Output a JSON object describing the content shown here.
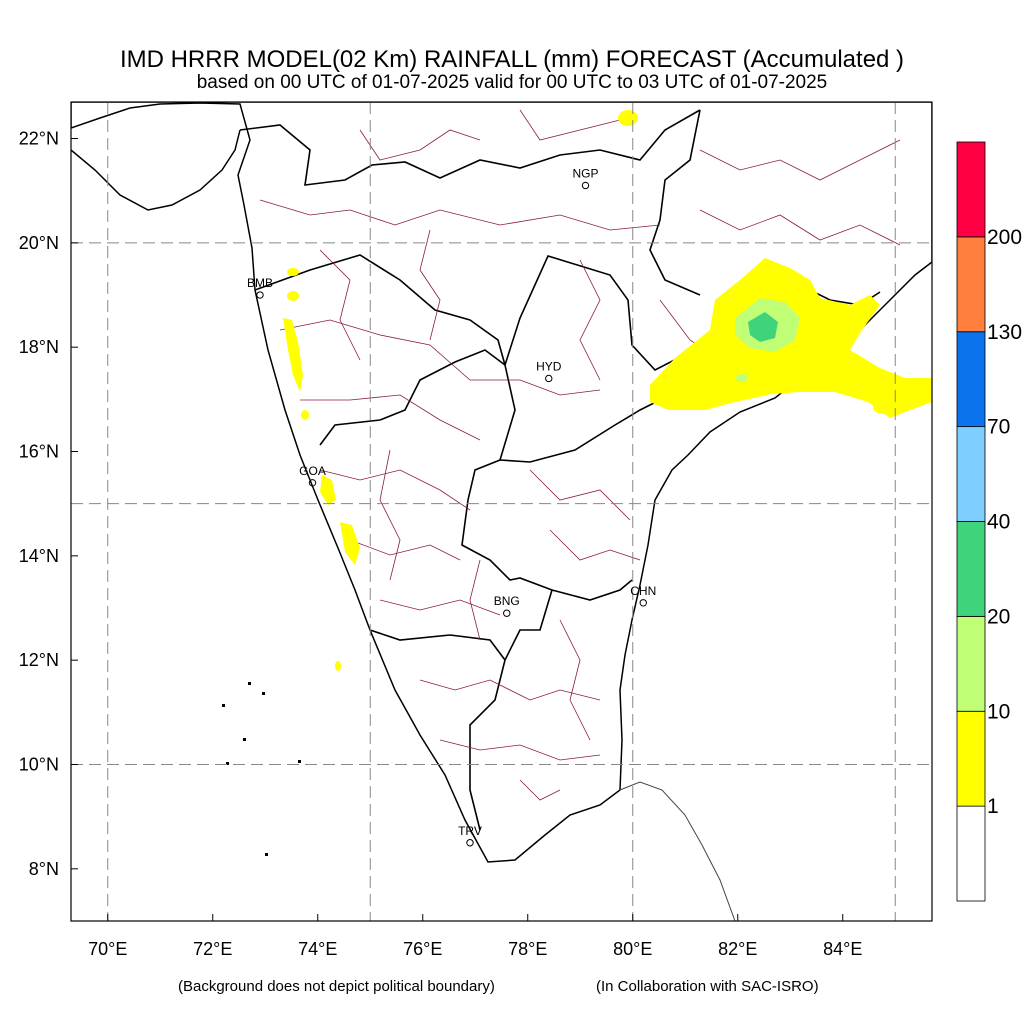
{
  "title": "IMD HRRR MODEL(02 Km)  RAINFALL (mm) FORECAST  (Accumulated )",
  "subtitle": "based on 00 UTC of 01-07-2025 valid for 00 UTC to 03 UTC of 01-07-2025",
  "footer_left": "(Background does not depict political boundary)",
  "footer_right": "(In Collaboration with SAC-ISRO)",
  "map": {
    "lon_range": [
      69.3,
      85.7
    ],
    "lat_range": [
      7.0,
      22.7
    ],
    "x_ticks": [
      {
        "value": 70,
        "label": "70°E"
      },
      {
        "value": 72,
        "label": "72°E"
      },
      {
        "value": 74,
        "label": "74°E"
      },
      {
        "value": 76,
        "label": "76°E"
      },
      {
        "value": 78,
        "label": "78°E"
      },
      {
        "value": 80,
        "label": "80°E"
      },
      {
        "value": 82,
        "label": "82°E"
      },
      {
        "value": 84,
        "label": "84°E"
      }
    ],
    "y_ticks": [
      {
        "value": 8,
        "label": "8°N"
      },
      {
        "value": 10,
        "label": "10°N"
      },
      {
        "value": 12,
        "label": "12°N"
      },
      {
        "value": 14,
        "label": "14°N"
      },
      {
        "value": 16,
        "label": "16°N"
      },
      {
        "value": 18,
        "label": "18°N"
      },
      {
        "value": 20,
        "label": "20°N"
      },
      {
        "value": 22,
        "label": "22°N"
      }
    ],
    "grid_lons": [
      70,
      75,
      80,
      85
    ],
    "grid_lats": [
      10,
      15,
      20
    ],
    "cities": [
      {
        "code": "NGP",
        "lon": 79.1,
        "lat": 21.1
      },
      {
        "code": "BMB",
        "lon": 72.9,
        "lat": 19.0
      },
      {
        "code": "HYD",
        "lon": 78.4,
        "lat": 17.4
      },
      {
        "code": "GOA",
        "lon": 73.9,
        "lat": 15.4
      },
      {
        "code": "CHN",
        "lon": 80.2,
        "lat": 13.1
      },
      {
        "code": "BNG",
        "lon": 77.6,
        "lat": 12.9
      },
      {
        "code": "TRV",
        "lon": 76.9,
        "lat": 8.5
      }
    ]
  },
  "colorbar": {
    "colors": [
      "#ffffff",
      "#ffff00",
      "#c0ff75",
      "#3fd37c",
      "#7ecfff",
      "#0c73ef",
      "#ff7f3f",
      "#ff0044"
    ],
    "labels": [
      "1",
      "10",
      "20",
      "40",
      "70",
      "130",
      "200"
    ]
  }
}
